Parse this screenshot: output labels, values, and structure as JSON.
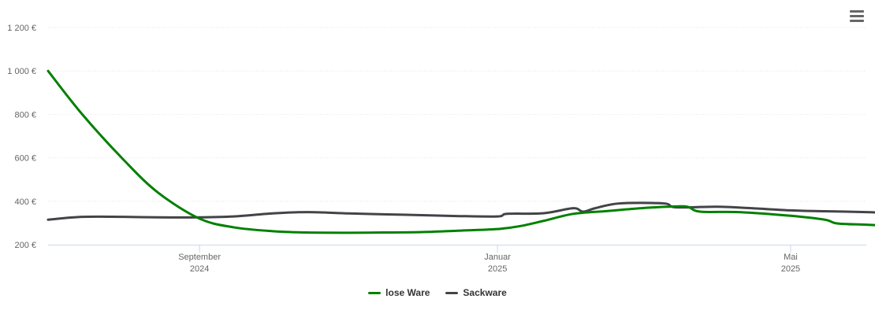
{
  "chart_data": {
    "type": "line",
    "title": "",
    "xlabel": "",
    "ylabel": "",
    "ylim": [
      200,
      1200
    ],
    "y_ticks": [
      "200 €",
      "400 €",
      "600 €",
      "800 €",
      "1 000 €",
      "1 200 €"
    ],
    "y_tick_values": [
      200,
      400,
      600,
      800,
      1000,
      1200
    ],
    "x_range": [
      "2024-07-01",
      "2025-06-01"
    ],
    "x_ticks": [
      {
        "date": "2024-09-01",
        "label1": "September",
        "label2": "2024"
      },
      {
        "date": "2025-01-01",
        "label1": "Januar",
        "label2": "2025"
      },
      {
        "date": "2025-05-01",
        "label1": "Mai",
        "label2": "2025"
      }
    ],
    "grid": true,
    "legend_position": "bottom-center",
    "series": [
      {
        "name": "lose Ware",
        "color": "#008000",
        "points": [
          [
            "2024-07-01",
            1000
          ],
          [
            "2024-07-15",
            800
          ],
          [
            "2024-08-01",
            590
          ],
          [
            "2024-08-15",
            440
          ],
          [
            "2024-09-01",
            320
          ],
          [
            "2024-09-15",
            280
          ],
          [
            "2024-10-01",
            262
          ],
          [
            "2024-10-15",
            256
          ],
          [
            "2024-11-01",
            255
          ],
          [
            "2024-11-15",
            256
          ],
          [
            "2024-12-01",
            258
          ],
          [
            "2024-12-15",
            264
          ],
          [
            "2025-01-01",
            272
          ],
          [
            "2025-01-10",
            285
          ],
          [
            "2025-01-20",
            310
          ],
          [
            "2025-02-01",
            342
          ],
          [
            "2025-02-15",
            355
          ],
          [
            "2025-03-01",
            368
          ],
          [
            "2025-03-15",
            376
          ],
          [
            "2025-03-20",
            374
          ],
          [
            "2025-03-25",
            352
          ],
          [
            "2025-04-10",
            350
          ],
          [
            "2025-05-01",
            333
          ],
          [
            "2025-05-15",
            315
          ],
          [
            "2025-05-20",
            298
          ],
          [
            "2025-06-01",
            292
          ],
          [
            "2025-06-15",
            285
          ]
        ]
      },
      {
        "name": "Sackware",
        "color": "#434348",
        "points": [
          [
            "2024-07-01",
            315
          ],
          [
            "2024-07-15",
            328
          ],
          [
            "2024-08-01",
            328
          ],
          [
            "2024-08-15",
            326
          ],
          [
            "2024-09-01",
            326
          ],
          [
            "2024-09-15",
            330
          ],
          [
            "2024-10-01",
            344
          ],
          [
            "2024-10-15",
            350
          ],
          [
            "2024-11-01",
            344
          ],
          [
            "2024-11-15",
            340
          ],
          [
            "2024-12-01",
            336
          ],
          [
            "2024-12-15",
            332
          ],
          [
            "2025-01-01",
            330
          ],
          [
            "2025-01-05",
            342
          ],
          [
            "2025-01-20",
            345
          ],
          [
            "2025-02-01",
            368
          ],
          [
            "2025-02-05",
            352
          ],
          [
            "2025-02-10",
            368
          ],
          [
            "2025-02-20",
            390
          ],
          [
            "2025-03-10",
            390
          ],
          [
            "2025-03-15",
            372
          ],
          [
            "2025-04-01",
            375
          ],
          [
            "2025-04-15",
            368
          ],
          [
            "2025-05-01",
            358
          ],
          [
            "2025-05-15",
            354
          ],
          [
            "2025-06-01",
            350
          ],
          [
            "2025-06-15",
            344
          ]
        ]
      }
    ]
  }
}
